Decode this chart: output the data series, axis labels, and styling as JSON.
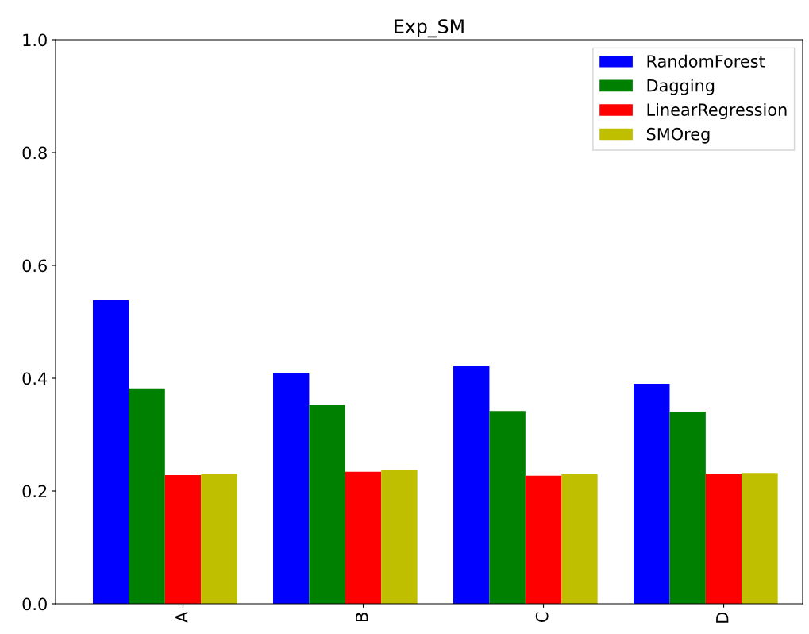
{
  "chart_data": {
    "type": "bar",
    "title": "Exp_SM",
    "categories": [
      "A",
      "B",
      "C",
      "D"
    ],
    "series": [
      {
        "name": "RandomForest",
        "color": "#0000ff",
        "values": [
          0.538,
          0.41,
          0.421,
          0.39
        ]
      },
      {
        "name": "Dagging",
        "color": "#008000",
        "values": [
          0.382,
          0.352,
          0.342,
          0.341
        ]
      },
      {
        "name": "LinearRegression",
        "color": "#ff0000",
        "values": [
          0.228,
          0.234,
          0.227,
          0.231
        ]
      },
      {
        "name": "SMOreg",
        "color": "#bfbf00",
        "values": [
          0.231,
          0.237,
          0.23,
          0.232
        ]
      }
    ],
    "ylim": [
      0,
      1.0
    ],
    "yticks": [
      {
        "value": 0,
        "label": "0.0"
      },
      0.2,
      0.4,
      0.6,
      0.8,
      {
        "value": 1,
        "label": "1.0"
      }
    ],
    "grid": false,
    "legend": "top right"
  }
}
